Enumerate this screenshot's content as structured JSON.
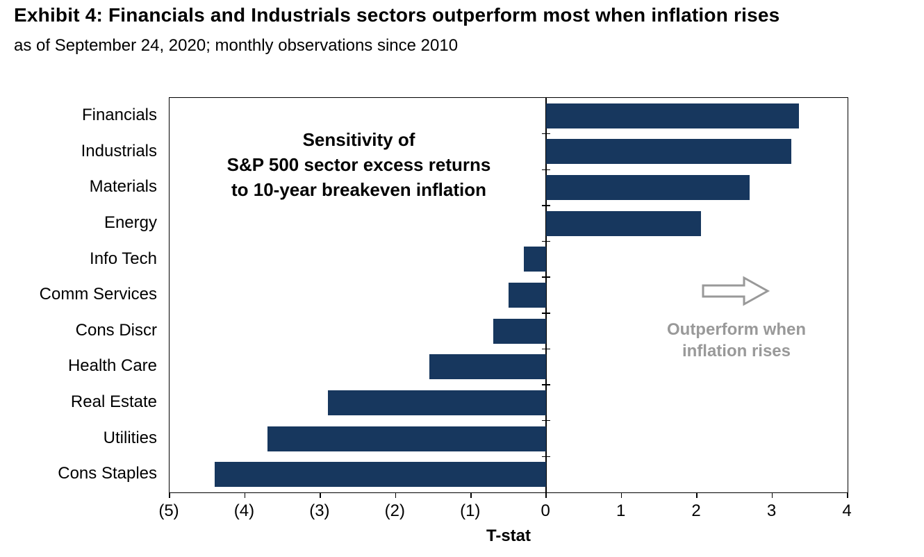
{
  "header": {
    "title": "Exhibit 4: Financials and Industrials sectors outperform most when inflation rises",
    "subtitle": "as of September 24, 2020; monthly observations since 2010"
  },
  "chart_data": {
    "type": "bar",
    "orientation": "horizontal",
    "title": "",
    "categories": [
      "Financials",
      "Industrials",
      "Materials",
      "Energy",
      "Info Tech",
      "Comm Services",
      "Cons Discr",
      "Health Care",
      "Real Estate",
      "Utilities",
      "Cons Staples"
    ],
    "values": [
      3.35,
      3.25,
      2.7,
      2.05,
      -0.3,
      -0.5,
      -0.7,
      -1.55,
      -2.9,
      -3.7,
      -4.4
    ],
    "xlabel": "T-stat",
    "ylabel": "",
    "xlim": [
      -5,
      4
    ],
    "x_ticks": [
      -5,
      -4,
      -3,
      -2,
      -1,
      0,
      1,
      2,
      3,
      4
    ],
    "x_tick_labels": [
      "(5)",
      "(4)",
      "(3)",
      "(2)",
      "(1)",
      "0",
      "1",
      "2",
      "3",
      "4"
    ],
    "grid": false,
    "legend": "none",
    "bar_color": "#17375E",
    "axis_color": "#000000",
    "annotation_lines": [
      "Sensitivity of",
      "S&P 500 sector excess returns",
      "to 10-year breakeven inflation"
    ],
    "callout": {
      "lines": [
        "Outperform when",
        "inflation rises"
      ],
      "color": "#999999",
      "icon": "right-arrow"
    }
  }
}
